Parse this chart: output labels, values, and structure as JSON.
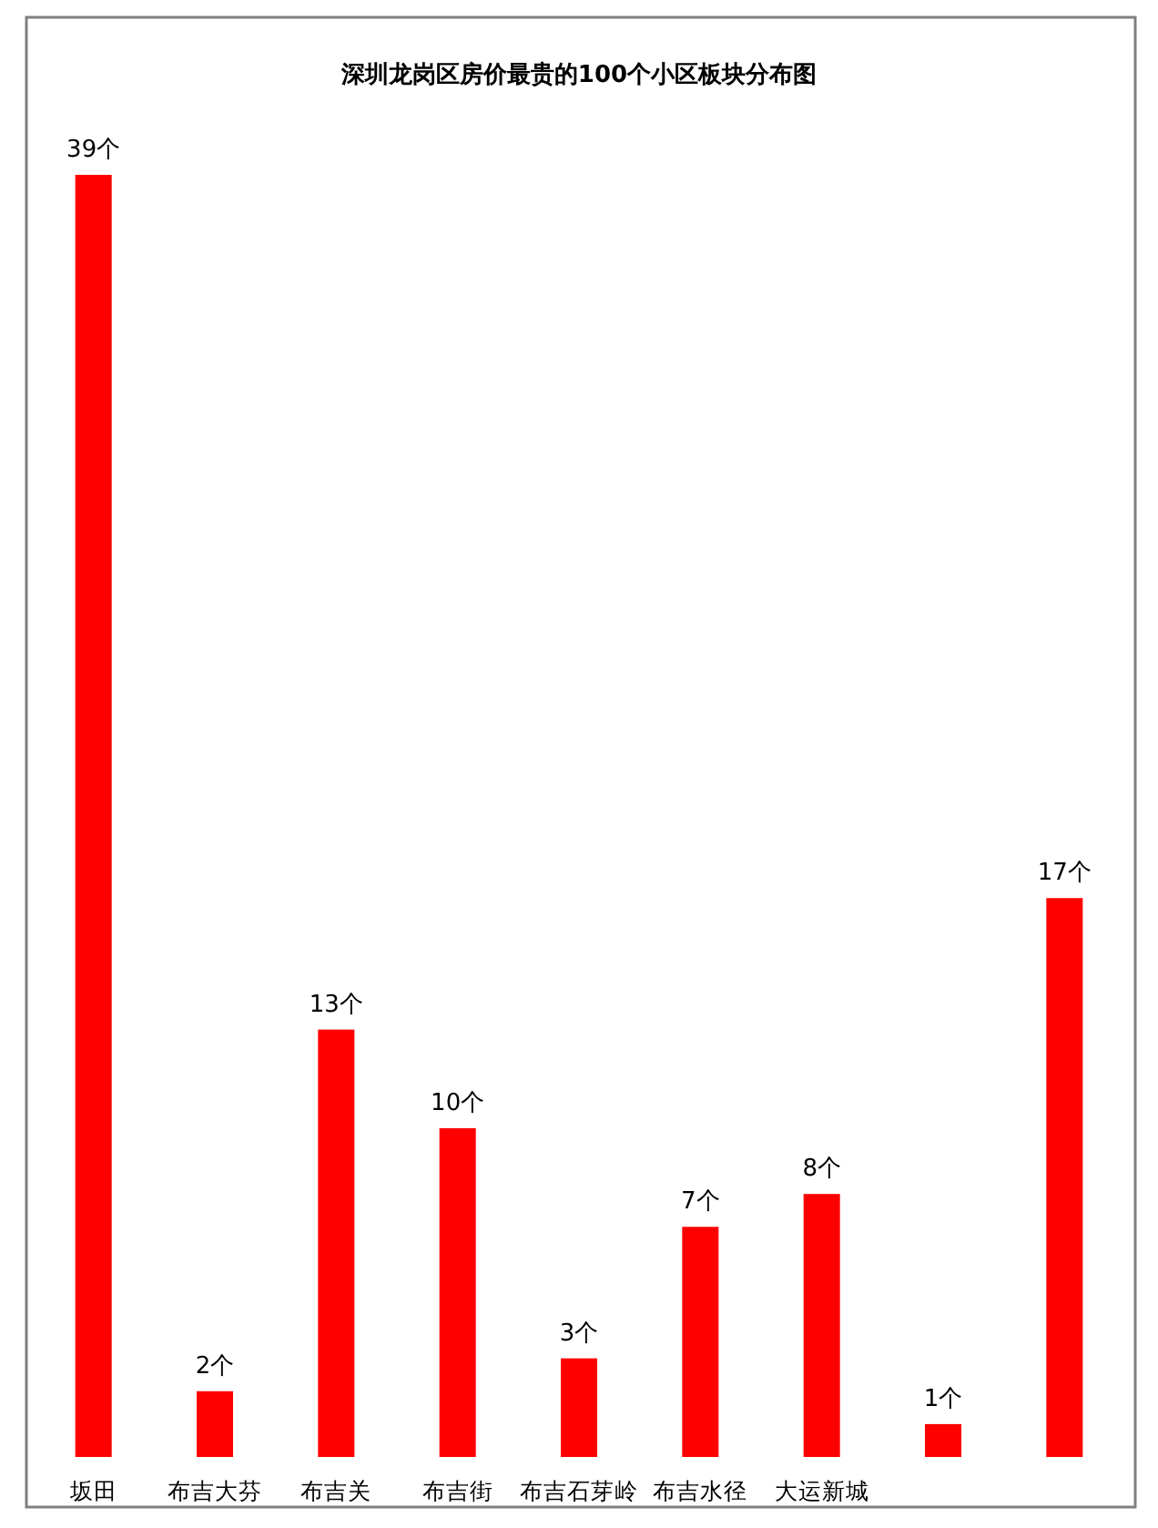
{
  "chart_data": {
    "type": "bar",
    "title": "深圳龙岗区房价最贵的100个小区板块分布图",
    "categories": [
      "坂田",
      "布吉大芬",
      "布吉关",
      "布吉街",
      "布吉石芽岭",
      "布吉水径",
      "大运新城",
      null,
      null
    ],
    "values": [
      39,
      2,
      13,
      10,
      3,
      7,
      8,
      1,
      17
    ],
    "value_labels": [
      "39个",
      "2个",
      "13个",
      "10个",
      "3个",
      "7个",
      "8个",
      "1个",
      "17个"
    ],
    "color": "#ff0000"
  }
}
